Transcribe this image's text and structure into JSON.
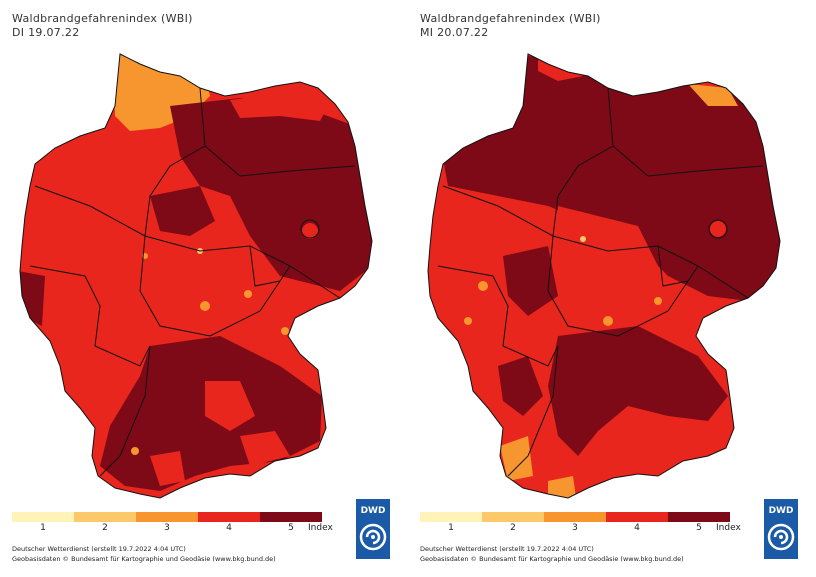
{
  "panels": [
    {
      "title": "Waldbrandgefahrenindex (WBI)",
      "date": "DI 19.07.22",
      "legend": {
        "labels": [
          "1",
          "2",
          "3",
          "4",
          "5"
        ],
        "unit": "Index"
      },
      "credits": [
        "Deutscher Wetterdienst (erstellt 19.7.2022 4:04 UTC)",
        "Geobasisdaten © Bundesamt für Kartographie und Geodäsie (www.bkg.bund.de)"
      ],
      "logo_text": "DWD"
    },
    {
      "title": "Waldbrandgefahrenindex (WBI)",
      "date": "MI 20.07.22",
      "legend": {
        "labels": [
          "1",
          "2",
          "3",
          "4",
          "5"
        ],
        "unit": "Index"
      },
      "credits": [
        "Deutscher Wetterdienst (erstellt 19.7.2022 4:04 UTC)",
        "Geobasisdaten © Bundesamt für Kartographie und Geodäsie (www.bkg.bund.de)"
      ],
      "logo_text": "DWD"
    }
  ],
  "colors": {
    "level1": "#fff3b8",
    "level2": "#fdc86a",
    "level3": "#f7962e",
    "level4": "#e8261d",
    "level5": "#7d0a16",
    "logo_blue": "#1a5aa6"
  }
}
